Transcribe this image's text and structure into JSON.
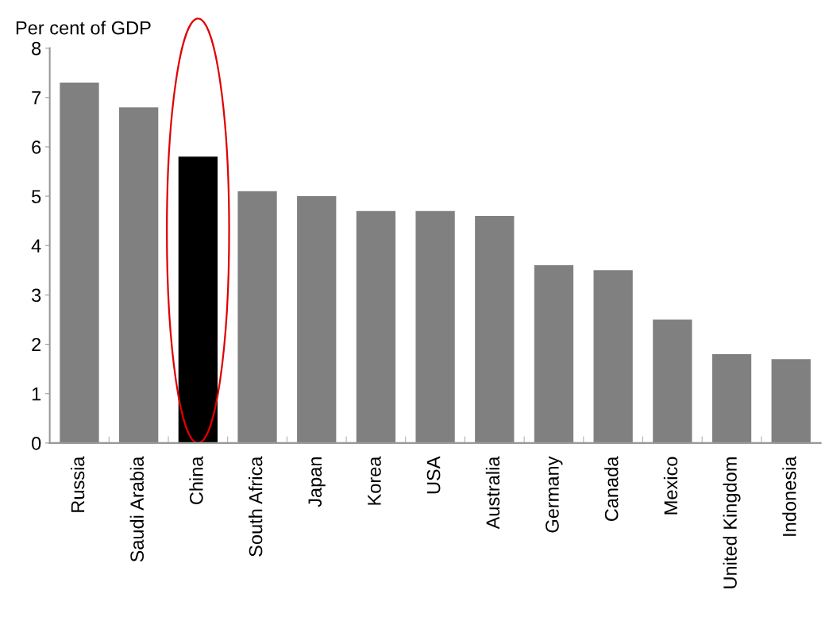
{
  "chart_data": {
    "type": "bar",
    "ylabel": "Per cent of GDP",
    "categories": [
      "Russia",
      "Saudi Arabia",
      "China",
      "South Africa",
      "Japan",
      "Korea",
      "USA",
      "Australia",
      "Germany",
      "Canada",
      "Mexico",
      "United Kingdom",
      "Indonesia"
    ],
    "values": [
      7.3,
      6.8,
      5.8,
      5.1,
      5.0,
      4.7,
      4.7,
      4.6,
      3.6,
      3.5,
      2.5,
      1.8,
      1.7
    ],
    "colors": [
      "#808080",
      "#808080",
      "#000000",
      "#808080",
      "#808080",
      "#808080",
      "#808080",
      "#808080",
      "#808080",
      "#808080",
      "#808080",
      "#808080",
      "#808080"
    ],
    "ylim": [
      0,
      8
    ],
    "yticks": [
      0,
      1,
      2,
      3,
      4,
      5,
      6,
      7,
      8
    ],
    "grid": false,
    "legend": false
  }
}
